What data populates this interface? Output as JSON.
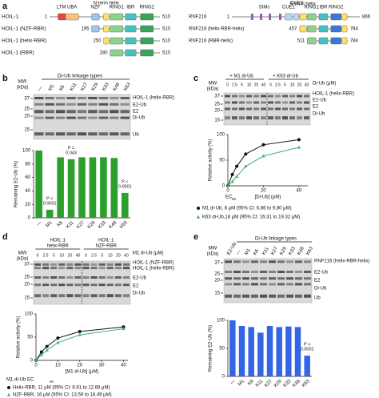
{
  "panel_labels": [
    "a",
    "b",
    "c",
    "d",
    "e"
  ],
  "a": {
    "hoil_domains": [
      "LTM",
      "UBA",
      "NZF",
      "N-term helix",
      "RING1",
      "IBR",
      "RING2"
    ],
    "hoil_rows": [
      {
        "label": "HOIL-1",
        "start": "1",
        "end": "510"
      },
      {
        "label": "HOIL-1 (NZF-RBR)",
        "start": "195",
        "end": "510"
      },
      {
        "label": "HOIL-1 (helix-RBR)",
        "start": "250",
        "end": "510"
      },
      {
        "label": "HOIL-1 (RBR)",
        "start": "280",
        "end": "510"
      }
    ],
    "rnf_domains": [
      "SIMs",
      "CUE1",
      "CUE2",
      "N-term helix",
      "RING1",
      "IBR",
      "RING2"
    ],
    "rnf_rows": [
      {
        "label": "RNF216",
        "start": "1",
        "end": "866"
      },
      {
        "label": "RNF216 (helix-RBR-helix)",
        "start": "457",
        "end": "784"
      },
      {
        "label": "RNF216 (RBR-helix)",
        "start": "511",
        "end": "784"
      }
    ]
  },
  "b_gel": {
    "header": "Di-Ub linkage types",
    "mw_label": [
      "MW",
      "(kDa)"
    ],
    "mw": [
      "37",
      "25",
      "20",
      "15"
    ],
    "lanes": [
      "—",
      "M1",
      "K6",
      "K11",
      "K27",
      "K29",
      "K33",
      "K48",
      "K63"
    ],
    "bands": [
      "HOIL-1 (helix-RBR)",
      "E2-Ub",
      "E2",
      "Di-Ub",
      "Ub"
    ]
  },
  "c_gel": {
    "groups": [
      "+ M1 di-Ub",
      "+ K63 di-Ub"
    ],
    "conc_label": "Di-Ub (μM)",
    "conc": [
      "0",
      "2.5",
      "5",
      "10",
      "20",
      "40"
    ],
    "mw_label": [
      "MW",
      "(kDa)"
    ],
    "mw": [
      "37",
      "25",
      "20",
      "15"
    ],
    "bands": [
      "HOIL-1 (helix-RBR)",
      "E2-Ub",
      "E2",
      "Di-Ub"
    ]
  },
  "d_gel": {
    "groups": [
      [
        "HOIL-1",
        "helix-RBR"
      ],
      [
        "HOIL-1",
        "NZF-RBR"
      ]
    ],
    "conc_label": "M1 di-Ub (μM)",
    "conc": [
      "0",
      "2.5",
      "5",
      "10",
      "20",
      "40"
    ],
    "mw_label": [
      "MW",
      "(kDa)"
    ],
    "mw": [
      "37",
      "25",
      "20",
      "15"
    ],
    "bands": [
      "HOIL-1 (NZF-RBR)",
      "HOIL-1 (helix-RBR)",
      "E2-Ub",
      "E2",
      "Di-Ub"
    ]
  },
  "e_gel": {
    "header": "Di-Ub linkage types",
    "mw_label": [
      "MW",
      "(kDa)"
    ],
    "mw": [
      "37",
      "25",
      "20",
      "15"
    ],
    "lanes": [
      "E2-Ub",
      "—",
      "M1",
      "K6",
      "K11",
      "K27",
      "K29",
      "K33",
      "K48",
      "K63"
    ],
    "bands": [
      "RNF216 (helix-RBR-helix)",
      "E2-Ub",
      "E2",
      "Di-Ub",
      "Ub"
    ]
  },
  "chart_data": [
    {
      "type": "bar",
      "ylabel": "Remaining E2-Ub (%)",
      "categories": [
        "—",
        "M1",
        "K6",
        "K11",
        "K27",
        "K29",
        "K33",
        "K48",
        "K63"
      ],
      "values": [
        100,
        12,
        90,
        87,
        90,
        90,
        90,
        89,
        37
      ],
      "color": "#2ca02c",
      "ylim": [
        0,
        100
      ],
      "yticks": [
        0,
        20,
        40,
        60,
        80,
        100
      ],
      "annotations": [
        [
          "P <",
          "0.0001"
        ],
        [
          "P =",
          "0.043"
        ],
        [
          "P <",
          "0.0001"
        ]
      ]
    },
    {
      "type": "line",
      "ylabel": "Relative activity (%)",
      "xlabel": "[Di-Ub] (μM)",
      "ec_label": [
        "EC",
        "50"
      ],
      "x": [
        0,
        2.5,
        5,
        10,
        20,
        40
      ],
      "series": [
        {
          "name": "M1 di-Ub, 8 μM (95% CI: 6.86 to 9.80 μM)",
          "color": "#111111",
          "values": [
            0,
            22,
            38,
            62,
            80,
            90
          ]
        },
        {
          "name": "K63 di-Ub,18 μM (95% CI: 16.31 to 19.32 μM)",
          "color": "#3cb371",
          "values": [
            0,
            8,
            18,
            38,
            58,
            75
          ]
        }
      ],
      "xlim": [
        0,
        45
      ],
      "xticks": [
        0,
        20,
        40
      ],
      "ylim": [
        0,
        100
      ],
      "yticks": [
        0,
        50,
        100
      ]
    },
    {
      "type": "line",
      "ylabel": "Relative activity (%)",
      "xlabel": "[M1 di-Ub] (μM)",
      "legend_title": [
        "M1 di-Ub EC",
        "50"
      ],
      "x": [
        0,
        2.5,
        5,
        10,
        20,
        40
      ],
      "series": [
        {
          "name": "Helix-RBR, 11 μM (95% CI: 8.91 to 12.68 μM)",
          "color": "#111111",
          "values": [
            0,
            18,
            30,
            48,
            62,
            72
          ]
        },
        {
          "name": "NZF-RBR, 16 μM (95% CI: 13.59 to 18.49 μM)",
          "color": "#3cb371",
          "values": [
            0,
            12,
            22,
            38,
            55,
            68
          ]
        }
      ],
      "xlim": [
        0,
        42
      ],
      "xticks": [
        0,
        10,
        20,
        30,
        40
      ],
      "ylim": [
        0,
        100
      ],
      "yticks": [
        0,
        50,
        100
      ]
    },
    {
      "type": "bar",
      "ylabel": "Remaining E2-Ub (%)",
      "categories": [
        "—",
        "M1",
        "K6",
        "K11",
        "K27",
        "K29",
        "K33",
        "K48",
        "K63"
      ],
      "values": [
        100,
        90,
        88,
        78,
        90,
        88,
        89,
        88,
        37
      ],
      "color": "#3366e6",
      "ylim": [
        0,
        100
      ],
      "yticks": [
        0,
        50,
        100
      ],
      "annotations": [
        [
          "P <",
          "0.0001"
        ]
      ]
    }
  ]
}
